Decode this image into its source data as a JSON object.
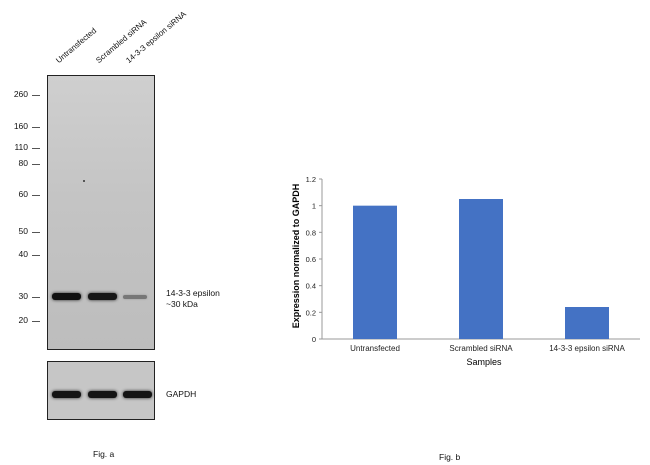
{
  "fig_a": {
    "lanes": [
      "Untransfected",
      "Scrambled siRNA",
      "14-3-3 epsilon siRNA"
    ],
    "mw_markers": [
      "260",
      "160",
      "110",
      "80",
      "60",
      "50",
      "40",
      "30",
      "20"
    ],
    "band_label_line1": "14-3-3 epsilon",
    "band_label_line2": "~30 kDa",
    "band_intensity": [
      1.0,
      0.95,
      0.3
    ],
    "loading_label": "GAPDH",
    "caption": "Fig. a"
  },
  "fig_b": {
    "caption": "Fig. b"
  },
  "chart_data": {
    "type": "bar",
    "categories": [
      "Untransfected",
      "Scrambled siRNA",
      "14-3-3 epsilon siRNA"
    ],
    "values": [
      1.0,
      1.05,
      0.24
    ],
    "xlabel": "Samples",
    "ylabel": "Expression  normalized to GAPDH",
    "ylim": [
      0,
      1.2
    ],
    "yticks": [
      "0",
      "0.2",
      "0.4",
      "0.6",
      "0.8",
      "1",
      "1.2"
    ],
    "grid": false,
    "bar_color": "#4472C4"
  }
}
